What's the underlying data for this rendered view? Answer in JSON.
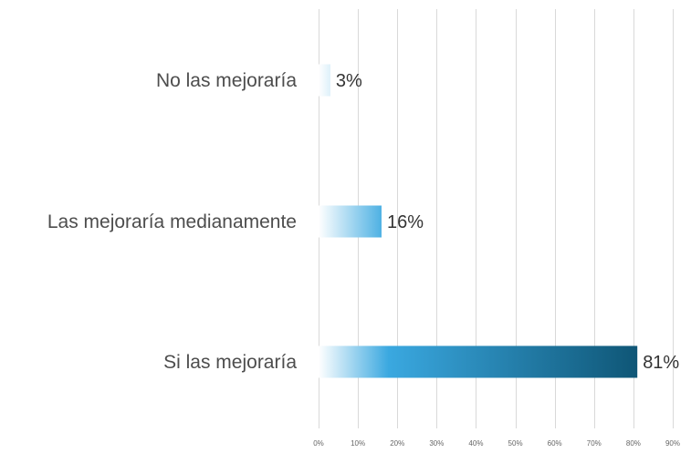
{
  "chart_data": {
    "type": "bar",
    "orientation": "horizontal",
    "categories": [
      "No las mejoraría",
      "Las mejoraría medianamente",
      "Si las mejoraría"
    ],
    "values": [
      3,
      16,
      81
    ],
    "data_labels": [
      "3%",
      "16%",
      "81%"
    ],
    "xlim": [
      0,
      90
    ],
    "x_ticks": [
      0,
      10,
      20,
      30,
      40,
      50,
      60,
      70,
      80,
      90
    ],
    "x_tick_labels": [
      "0%",
      "10%",
      "20%",
      "30%",
      "40%",
      "50%",
      "60%",
      "70%",
      "80%",
      "90%"
    ],
    "grid": "vertical",
    "legend": "none",
    "bar_gradient": {
      "start": "#ffffff",
      "mid": "#3aa8e0",
      "end": "#0f5676"
    },
    "gridline_color": "#d9d9d9",
    "title": "",
    "xlabel": "",
    "ylabel": ""
  }
}
